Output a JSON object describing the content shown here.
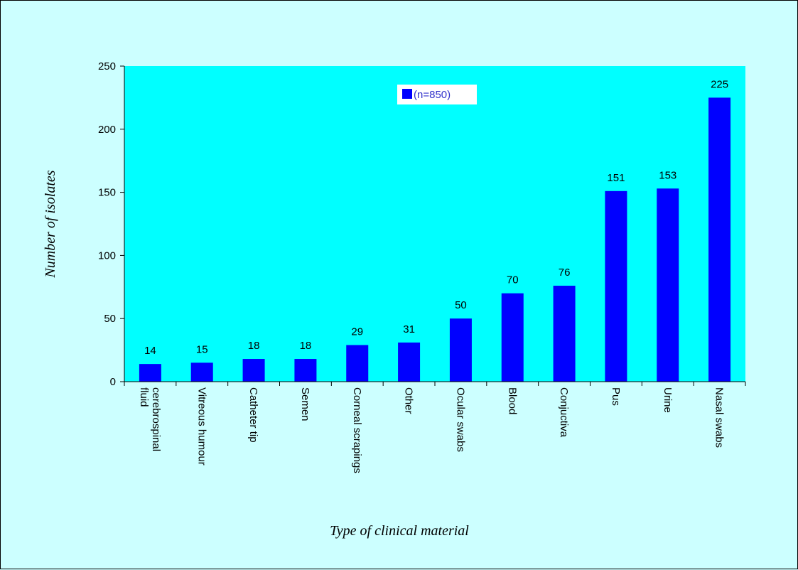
{
  "chart_data": {
    "type": "bar",
    "categories": [
      "cerebrospinal fluid",
      "Vitreous humour",
      "Catheter tip",
      "Semen",
      "Corneal scrapings",
      "Other",
      "Ocular swabs",
      "Blood",
      "Conjuctiva",
      "Pus",
      "Urine",
      "Nasal swabs"
    ],
    "category_lines": [
      [
        "cerebrospinal",
        "fluid"
      ],
      [
        "Vitreous humour"
      ],
      [
        "Catheter tip"
      ],
      [
        "Semen"
      ],
      [
        "Corneal scrapings"
      ],
      [
        "Other"
      ],
      [
        "Ocular swabs"
      ],
      [
        "Blood"
      ],
      [
        "Conjuctiva"
      ],
      [
        "Pus"
      ],
      [
        "Urine"
      ],
      [
        "Nasal swabs"
      ]
    ],
    "series": [
      {
        "name": "(n=850)",
        "values": [
          14,
          15,
          18,
          18,
          29,
          31,
          50,
          70,
          76,
          151,
          153,
          225
        ]
      }
    ],
    "xlabel": "Type of clinical material",
    "ylabel": "Number of isolates",
    "ylim": [
      0,
      250
    ],
    "yticks": [
      0,
      50,
      100,
      150,
      200,
      250
    ],
    "grid": false,
    "legend_position": "top-center",
    "colors": {
      "bar": "#0000ff",
      "plot_background": "#00ffff",
      "page_background": "#ccffff",
      "legend_text": "#3333cc"
    }
  }
}
